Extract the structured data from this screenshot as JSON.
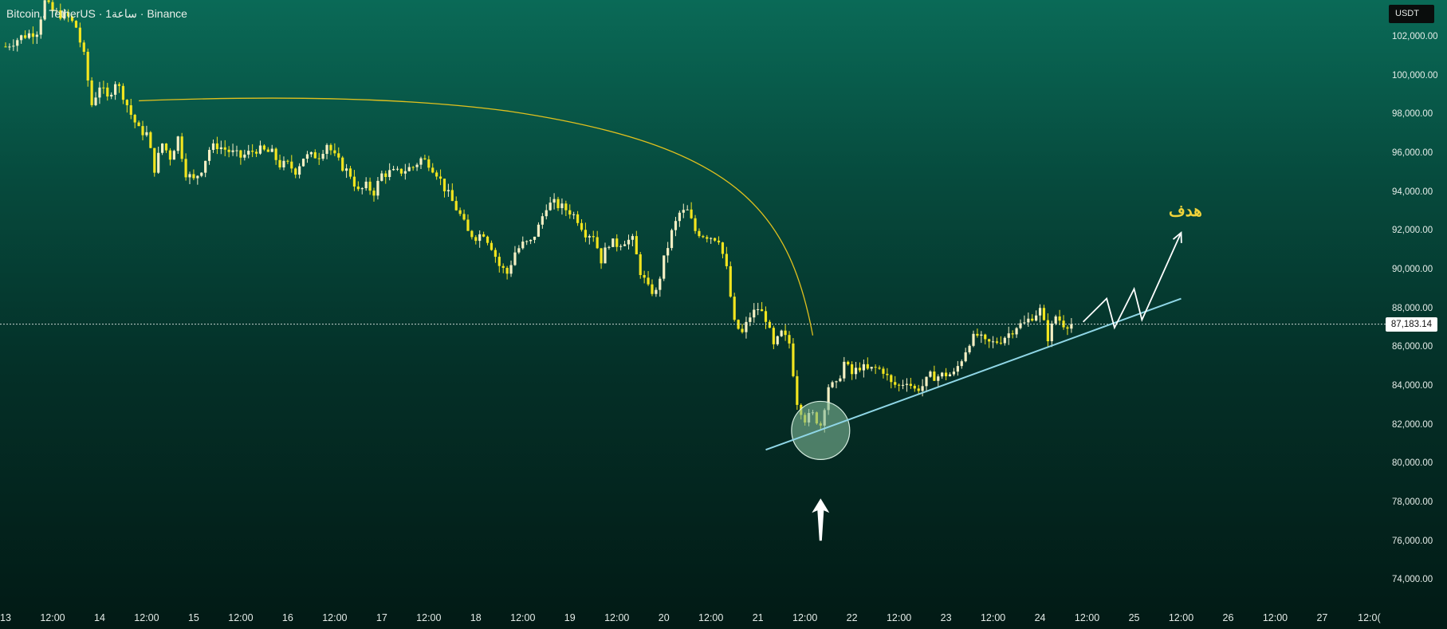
{
  "header": {
    "symbol": "Bitcoin / TetherUS",
    "interval": "1ساعة",
    "exchange": "Binance",
    "separator": "·"
  },
  "price_scale": {
    "currency": "USDT",
    "current_price_label": "87,183.14"
  },
  "annotations": {
    "target_label": "هدف",
    "marker_colors": {
      "curve": "#e0c01e",
      "trendline": "#8fd6e6",
      "circle_fill": "#7fb896",
      "arrows": "#ffffff",
      "bullish_candle": "#f5f0c4",
      "bearish_candle": "#f2e51f"
    }
  },
  "chart_data": {
    "type": "candlestick",
    "title": "Bitcoin / TetherUS · 1ساعة · Binance",
    "y_unit": "USDT",
    "ylim": [
      73000,
      104500
    ],
    "y_ticks": [
      74000,
      76000,
      78000,
      80000,
      82000,
      84000,
      86000,
      88000,
      90000,
      92000,
      94000,
      96000,
      98000,
      100000,
      102000
    ],
    "y_tick_labels": [
      "74,000.00",
      "76,000.00",
      "78,000.00",
      "80,000.00",
      "82,000.00",
      "84,000.00",
      "86,000.00",
      "88,000.00",
      "90,000.00",
      "92,000.00",
      "94,000.00",
      "96,000.00",
      "98,000.00",
      "100,000.00",
      "102,000.00"
    ],
    "x_axis": {
      "unit": "hours since day 13 00:00",
      "range": [
        0,
        352
      ],
      "ticks": [
        {
          "h": 0,
          "label": "13"
        },
        {
          "h": 12,
          "label": "12:00"
        },
        {
          "h": 24,
          "label": "14"
        },
        {
          "h": 36,
          "label": "12:00"
        },
        {
          "h": 48,
          "label": "15"
        },
        {
          "h": 60,
          "label": "12:00"
        },
        {
          "h": 72,
          "label": "16"
        },
        {
          "h": 84,
          "label": "12:00"
        },
        {
          "h": 96,
          "label": "17"
        },
        {
          "h": 108,
          "label": "12:00"
        },
        {
          "h": 120,
          "label": "18"
        },
        {
          "h": 132,
          "label": "12:00"
        },
        {
          "h": 144,
          "label": "19"
        },
        {
          "h": 156,
          "label": "12:00"
        },
        {
          "h": 168,
          "label": "20"
        },
        {
          "h": 180,
          "label": "12:00"
        },
        {
          "h": 192,
          "label": "21"
        },
        {
          "h": 204,
          "label": "12:00"
        },
        {
          "h": 216,
          "label": "22"
        },
        {
          "h": 228,
          "label": "12:00"
        },
        {
          "h": 240,
          "label": "23"
        },
        {
          "h": 252,
          "label": "12:00"
        },
        {
          "h": 264,
          "label": "24"
        },
        {
          "h": 276,
          "label": "12:00"
        },
        {
          "h": 288,
          "label": "25"
        },
        {
          "h": 300,
          "label": "12:00"
        },
        {
          "h": 312,
          "label": "26"
        },
        {
          "h": 324,
          "label": "12:00"
        },
        {
          "h": 336,
          "label": "27"
        },
        {
          "h": 348,
          "label": "12:0("
        }
      ]
    },
    "close_path": [
      [
        0,
        101500
      ],
      [
        4,
        102000
      ],
      [
        8,
        102300
      ],
      [
        10,
        103800
      ],
      [
        12,
        103300
      ],
      [
        16,
        103000
      ],
      [
        18,
        102500
      ],
      [
        20,
        101000
      ],
      [
        22,
        98500
      ],
      [
        24,
        99500
      ],
      [
        26,
        98800
      ],
      [
        28,
        99700
      ],
      [
        30,
        99000
      ],
      [
        32,
        98000
      ],
      [
        34,
        97200
      ],
      [
        36,
        97000
      ],
      [
        38,
        95200
      ],
      [
        40,
        96500
      ],
      [
        42,
        95800
      ],
      [
        44,
        96800
      ],
      [
        46,
        95000
      ],
      [
        48,
        94600
      ],
      [
        50,
        95200
      ],
      [
        52,
        96200
      ],
      [
        54,
        96400
      ],
      [
        56,
        96200
      ],
      [
        60,
        95800
      ],
      [
        64,
        96200
      ],
      [
        68,
        96000
      ],
      [
        70,
        95400
      ],
      [
        72,
        95400
      ],
      [
        74,
        95100
      ],
      [
        76,
        95800
      ],
      [
        80,
        95900
      ],
      [
        82,
        96500
      ],
      [
        84,
        95800
      ],
      [
        86,
        95300
      ],
      [
        88,
        94900
      ],
      [
        90,
        94000
      ],
      [
        92,
        94300
      ],
      [
        94,
        94000
      ],
      [
        96,
        94900
      ],
      [
        98,
        95000
      ],
      [
        100,
        95000
      ],
      [
        104,
        95300
      ],
      [
        106,
        95700
      ],
      [
        108,
        95500
      ],
      [
        110,
        95000
      ],
      [
        112,
        94200
      ],
      [
        114,
        93500
      ],
      [
        116,
        92800
      ],
      [
        118,
        91900
      ],
      [
        120,
        91700
      ],
      [
        122,
        91900
      ],
      [
        124,
        91200
      ],
      [
        126,
        90200
      ],
      [
        128,
        89800
      ],
      [
        130,
        90900
      ],
      [
        132,
        91300
      ],
      [
        134,
        91400
      ],
      [
        136,
        92200
      ],
      [
        138,
        93300
      ],
      [
        140,
        93400
      ],
      [
        142,
        93200
      ],
      [
        144,
        93000
      ],
      [
        146,
        92600
      ],
      [
        148,
        91900
      ],
      [
        150,
        91800
      ],
      [
        152,
        90500
      ],
      [
        154,
        91400
      ],
      [
        156,
        91300
      ],
      [
        158,
        91500
      ],
      [
        160,
        91500
      ],
      [
        162,
        89900
      ],
      [
        164,
        89000
      ],
      [
        166,
        88800
      ],
      [
        168,
        90500
      ],
      [
        170,
        91900
      ],
      [
        172,
        92900
      ],
      [
        174,
        93000
      ],
      [
        176,
        92000
      ],
      [
        178,
        91800
      ],
      [
        180,
        91700
      ],
      [
        182,
        91600
      ],
      [
        184,
        90000
      ],
      [
        186,
        87200
      ],
      [
        188,
        86700
      ],
      [
        190,
        87600
      ],
      [
        192,
        88000
      ],
      [
        194,
        87500
      ],
      [
        196,
        86000
      ],
      [
        198,
        86700
      ],
      [
        200,
        86200
      ],
      [
        202,
        83200
      ],
      [
        204,
        82300
      ],
      [
        206,
        82500
      ],
      [
        208,
        82000
      ],
      [
        210,
        84000
      ],
      [
        212,
        84000
      ],
      [
        214,
        85200
      ],
      [
        216,
        84600
      ],
      [
        218,
        85000
      ],
      [
        220,
        84800
      ],
      [
        222,
        84900
      ],
      [
        224,
        84800
      ],
      [
        226,
        84100
      ],
      [
        228,
        84000
      ],
      [
        230,
        84300
      ],
      [
        232,
        83800
      ],
      [
        234,
        84000
      ],
      [
        236,
        84500
      ],
      [
        238,
        84500
      ],
      [
        240,
        84600
      ],
      [
        242,
        84600
      ],
      [
        244,
        85400
      ],
      [
        246,
        86300
      ],
      [
        248,
        86600
      ],
      [
        250,
        86200
      ],
      [
        252,
        86200
      ],
      [
        254,
        86400
      ],
      [
        256,
        86700
      ],
      [
        258,
        87100
      ],
      [
        260,
        87200
      ],
      [
        262,
        87600
      ],
      [
        264,
        87900
      ],
      [
        266,
        86500
      ],
      [
        268,
        87600
      ],
      [
        270,
        87200
      ],
      [
        272,
        87183
      ]
    ],
    "current_price": 87183.14,
    "drawings": {
      "trendline": {
        "start": [
          194,
          80700
        ],
        "end": [
          300,
          88500
        ]
      },
      "arc": {
        "start": [
          34,
          98700
        ],
        "apex": [
          92,
          98900
        ],
        "end": [
          206,
          86600
        ]
      },
      "support_circle": {
        "center": [
          208,
          81700
        ],
        "radius_usdt": 1500
      },
      "zigzag_projection": [
        [
          275,
          87300
        ],
        [
          281,
          88500
        ],
        [
          283,
          87000
        ],
        [
          288,
          89000
        ],
        [
          290,
          87400
        ],
        [
          300,
          91900
        ]
      ],
      "up_arrow_at": [
        208,
        77000
      ]
    }
  }
}
